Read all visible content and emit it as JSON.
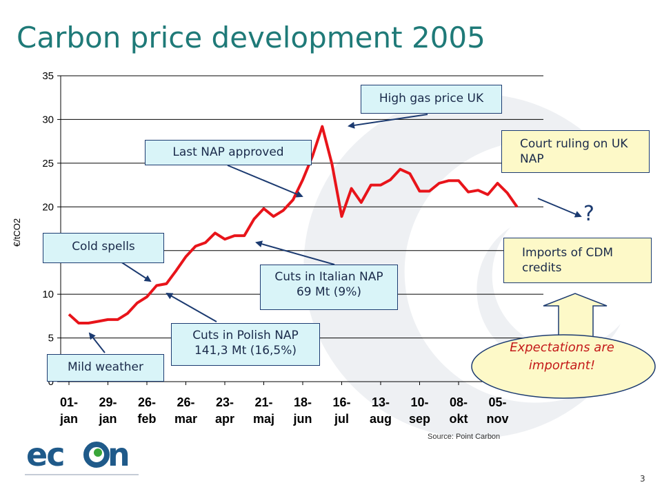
{
  "slide": {
    "title": "Carbon price development 2005",
    "page_number": "3",
    "source": "Source: Point Carbon",
    "logo_text": "econ"
  },
  "colors": {
    "title": "#1f7a78",
    "line": "#e8141a",
    "callout_cyan": "#d9f4f8",
    "callout_yellow": "#fdf9c8",
    "callout_border": "#1b3a70",
    "expectations_text": "#c41a1a",
    "logo": "#1f5a8a"
  },
  "chart_data": {
    "type": "line",
    "title": "",
    "xlabel": "",
    "ylabel": "€/tCO2",
    "ylim": [
      0,
      35
    ],
    "yticks": [
      0,
      5,
      10,
      15,
      20,
      25,
      30,
      35
    ],
    "grid": true,
    "x_tick_labels": [
      [
        "01-",
        "jan"
      ],
      [
        "29-",
        "jan"
      ],
      [
        "26-",
        "feb"
      ],
      [
        "26-",
        "mar"
      ],
      [
        "23-",
        "apr"
      ],
      [
        "21-",
        "maj"
      ],
      [
        "18-",
        "jun"
      ],
      [
        "16-",
        "jul"
      ],
      [
        "13-",
        "aug"
      ],
      [
        "10-",
        "sep"
      ],
      [
        "08-",
        "okt"
      ],
      [
        "05-",
        "nov"
      ]
    ],
    "series": [
      {
        "name": "",
        "x": [
          0,
          0.25,
          0.5,
          0.75,
          1,
          1.25,
          1.5,
          1.75,
          2,
          2.25,
          2.5,
          2.75,
          3,
          3.25,
          3.5,
          3.75,
          4,
          4.25,
          4.5,
          4.75,
          5,
          5.25,
          5.5,
          5.75,
          6,
          6.25,
          6.5,
          6.75,
          7,
          7.25,
          7.5,
          7.75,
          8,
          8.25,
          8.5,
          8.75,
          9,
          9.25,
          9.5,
          9.75,
          10,
          10.25,
          10.5,
          10.75,
          11,
          11.25,
          11.5
        ],
        "values": [
          7.7,
          6.7,
          6.7,
          6.9,
          7.1,
          7.1,
          7.8,
          9.0,
          9.7,
          11.0,
          11.2,
          12.7,
          14.3,
          15.5,
          15.9,
          17.0,
          16.3,
          16.7,
          16.7,
          18.6,
          19.8,
          18.9,
          19.6,
          20.8,
          23.1,
          25.8,
          29.2,
          24.9,
          18.9,
          22.1,
          20.5,
          22.5,
          22.5,
          23.1,
          24.3,
          23.8,
          21.8,
          21.8,
          22.7,
          23.0,
          23.0,
          21.7,
          21.9,
          21.4,
          22.7,
          21.6,
          20.0
        ]
      }
    ]
  },
  "annotations": {
    "high_gas": "High gas price UK",
    "last_nap": "Last NAP approved",
    "court_ruling": "Court ruling on UK NAP",
    "question": "?",
    "cold_spells": "Cold spells",
    "imports_cdm": "Imports of CDM credits",
    "cuts_italian": "Cuts in Italian NAP 69 Mt (9%)",
    "cuts_polish": "Cuts in Polish NAP 141,3 Mt (16,5%)",
    "mild_weather": "Mild weather",
    "expectations": "Expectations are important!"
  }
}
